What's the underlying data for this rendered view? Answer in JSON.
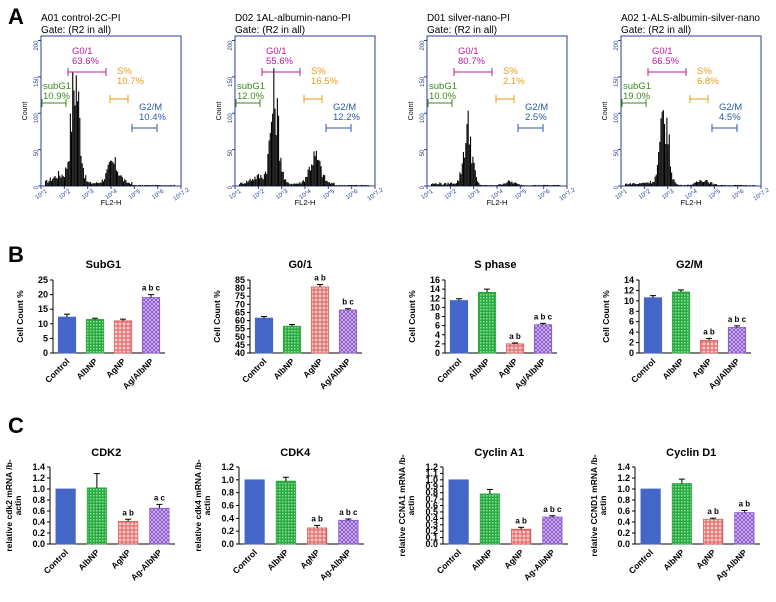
{
  "panels": {
    "a": "A",
    "b": "B",
    "c": "C"
  },
  "colors": {
    "axis": "#2b3f9a",
    "histogram": "#000000",
    "g01": "#c0189a",
    "subg1": "#3a8a1a",
    "s": "#e89b10",
    "g2m": "#2b5aa8",
    "control": "#4466c8",
    "albnp": "#2aaa40",
    "agnp": "#e05a5a",
    "agalbnp": "#8a55cc"
  },
  "flow": [
    {
      "title": "A01 control-2C-PI",
      "gate": "Gate: (R2 in all)",
      "xlabel": "FL2-H",
      "ylabel": "Count",
      "yticks": [
        "0",
        "50",
        "100",
        "150",
        "200"
      ],
      "xticks": [
        "10^1",
        "10^2",
        "10^3",
        "10^4",
        "10^5",
        "10^6",
        "10^7.2"
      ],
      "gates": {
        "g01": {
          "name": "G0/1",
          "pct": "63.6%"
        },
        "s": {
          "name": "S%",
          "pct": "10.7%"
        },
        "subg1": {
          "name": "subG1",
          "pct": "10.9%"
        },
        "g2m": {
          "name": "G2/M",
          "pct": "10.4%"
        }
      },
      "profile": {
        "g1_peak": 150,
        "g2_peak": 28,
        "g1_pos": 0.23,
        "g2_pos": 0.52,
        "floor": 12
      }
    },
    {
      "title": "D02 1AL-albumin-nano-PI",
      "gate": "Gate: (R2 in all)",
      "xlabel": "FL2-H",
      "ylabel": "Count",
      "yticks": [
        "0",
        "50",
        "100",
        "150",
        "200"
      ],
      "xticks": [
        "10^1",
        "10^2",
        "10^3",
        "10^4",
        "10^5",
        "10^6",
        "10^7.2"
      ],
      "gates": {
        "g01": {
          "name": "G0/1",
          "pct": "55.6%"
        },
        "s": {
          "name": "S%",
          "pct": "16.5%"
        },
        "subg1": {
          "name": "subG1",
          "pct": "12.0%"
        },
        "g2m": {
          "name": "G2/M",
          "pct": "12.2%"
        }
      },
      "profile": {
        "g1_peak": 120,
        "g2_peak": 38,
        "g1_pos": 0.27,
        "g2_pos": 0.58,
        "floor": 10
      }
    },
    {
      "title": "D01 silver-nano-PI",
      "gate": "Gate: (R2 in all)",
      "xlabel": "FL2-H",
      "ylabel": "Count",
      "yticks": [
        "0",
        "50",
        "100",
        "150",
        "200"
      ],
      "xticks": [
        "10^1",
        "10^2",
        "10^3",
        "10^4",
        "10^5",
        "10^6",
        "10^7.2"
      ],
      "gates": {
        "g01": {
          "name": "G0/1",
          "pct": "80.7%"
        },
        "s": {
          "name": "S%",
          "pct": "2.1%"
        },
        "subg1": {
          "name": "subG1",
          "pct": "10.0%"
        },
        "g2m": {
          "name": "G2/M",
          "pct": "2.5%"
        }
      },
      "profile": {
        "g1_peak": 80,
        "g2_peak": 5,
        "g1_pos": 0.28,
        "g2_pos": 0.6,
        "floor": 3
      }
    },
    {
      "title": "A02 1-ALS-albumin-silver-nano",
      "gate": "Gate: (R2 in all)",
      "xlabel": "FL2-H",
      "ylabel": "Count",
      "yticks": [
        "0",
        "50",
        "100",
        "150",
        "200"
      ],
      "xticks": [
        "10^1",
        "10^2",
        "10^3",
        "10^4",
        "10^5",
        "10^6",
        "10^7.2"
      ],
      "gates": {
        "g01": {
          "name": "G0/1",
          "pct": "66.5%"
        },
        "s": {
          "name": "S%",
          "pct": "6.8%"
        },
        "subg1": {
          "name": "subG1",
          "pct": "19.0%"
        },
        "g2m": {
          "name": "G2/M",
          "pct": "4.5%"
        }
      },
      "profile": {
        "g1_peak": 100,
        "g2_peak": 8,
        "g1_pos": 0.3,
        "g2_pos": 0.6,
        "floor": 4
      }
    }
  ],
  "chart_data": [
    {
      "type": "bar",
      "title": "SubG1",
      "ylabel": "Cell Count %",
      "categories": [
        "Control",
        "AlbNP",
        "AgNP",
        "Ag/AlbNP"
      ],
      "values": [
        12.3,
        11.5,
        11.0,
        19.0
      ],
      "errors": [
        1.0,
        0.4,
        0.6,
        1.0
      ],
      "sig": [
        "",
        "",
        "",
        "a b c"
      ],
      "ylim": [
        0,
        25
      ],
      "ticks": [
        "0",
        "5",
        "10",
        "15",
        "20",
        "25"
      ]
    },
    {
      "type": "bar",
      "title": "G0/1",
      "ylabel": "Cell Count %",
      "categories": [
        "Control",
        "AlbNP",
        "AgNP",
        "Ag/AlbNP"
      ],
      "values": [
        61.5,
        56.5,
        80.7,
        66.5
      ],
      "errors": [
        1.0,
        1.0,
        1.5,
        0.8
      ],
      "sig": [
        "",
        "",
        "a b",
        "b c"
      ],
      "ylim": [
        40,
        85
      ],
      "ticks": [
        "40",
        "45",
        "50",
        "55",
        "60",
        "65",
        "70",
        "75",
        "80",
        "85"
      ]
    },
    {
      "type": "bar",
      "title": "S phase",
      "ylabel": "Cell Count %",
      "categories": [
        "Control",
        "AlbNP",
        "AgNP",
        "Ag/AlbNP"
      ],
      "values": [
        11.5,
        13.3,
        2.0,
        6.2
      ],
      "errors": [
        0.4,
        0.7,
        0.2,
        0.3
      ],
      "sig": [
        "",
        "",
        "a b",
        "a b c"
      ],
      "ylim": [
        0,
        16
      ],
      "ticks": [
        "0",
        "2",
        "4",
        "6",
        "8",
        "10",
        "12",
        "14",
        "16"
      ]
    },
    {
      "type": "bar",
      "title": "G2/M",
      "ylabel": "Cell Count %",
      "categories": [
        "Control",
        "AlbNP",
        "AgNP",
        "Ag/AlbNP"
      ],
      "values": [
        10.6,
        11.7,
        2.4,
        4.9
      ],
      "errors": [
        0.4,
        0.4,
        0.4,
        0.3
      ],
      "sig": [
        "",
        "",
        "a b",
        "a b c"
      ],
      "ylim": [
        0,
        14
      ],
      "ticks": [
        "0",
        "2",
        "4",
        "6",
        "8",
        "10",
        "12",
        "14"
      ]
    },
    {
      "type": "bar",
      "title": "CDK2",
      "ylabel": "relative cdk2 mRNA /b-actin",
      "categories": [
        "Control",
        "AlbNP",
        "AgNP",
        "Ag-AlbNP"
      ],
      "values": [
        1.0,
        1.02,
        0.41,
        0.65
      ],
      "errors": [
        0.0,
        0.26,
        0.04,
        0.07
      ],
      "sig": [
        "",
        "",
        "a b",
        "a c"
      ],
      "ylim": [
        0,
        1.4
      ],
      "ticks": [
        "0.0",
        "0.2",
        "0.4",
        "0.6",
        "0.8",
        "1.0",
        "1.2",
        "1.4"
      ]
    },
    {
      "type": "bar",
      "title": "CDK4",
      "ylabel": "relative cdk4 mRNA /b-actin",
      "categories": [
        "Control",
        "AlbNP",
        "AgNP",
        "Ag-AlbNP"
      ],
      "values": [
        1.0,
        0.98,
        0.25,
        0.37
      ],
      "errors": [
        0.0,
        0.06,
        0.04,
        0.02
      ],
      "sig": [
        "",
        "",
        "a b",
        "a b c"
      ],
      "ylim": [
        0,
        1.2
      ],
      "ticks": [
        "0.0",
        "0.2",
        "0.4",
        "0.6",
        "0.8",
        "1.0",
        "1.2"
      ]
    },
    {
      "type": "bar",
      "title": "Cyclin A1",
      "ylabel": "relative CCNA1 mRNA /b-actin",
      "categories": [
        "Control",
        "AlbNP",
        "AgNP",
        "Ag-AlbNP"
      ],
      "values": [
        1.0,
        0.78,
        0.23,
        0.42
      ],
      "errors": [
        0.0,
        0.07,
        0.03,
        0.02
      ],
      "sig": [
        "",
        "",
        "a b",
        "a b c"
      ],
      "ylim": [
        0,
        1.2
      ],
      "ticks": [
        "0.0",
        "0.1",
        "0.2",
        "0.3",
        "0.4",
        "0.5",
        "0.6",
        "0.7",
        "0.8",
        "0.9",
        "1.0",
        "1.1",
        "1.2"
      ]
    },
    {
      "type": "bar",
      "title": "Cyclin D1",
      "ylabel": "relative CCND1 mRNA /b-actin",
      "categories": [
        "Control",
        "AlbNP",
        "AgNP",
        "Ag-AlbNP"
      ],
      "values": [
        1.0,
        1.1,
        0.45,
        0.57
      ],
      "errors": [
        0.0,
        0.08,
        0.02,
        0.04
      ],
      "sig": [
        "",
        "",
        "a b",
        "a b"
      ],
      "ylim": [
        0,
        1.4
      ],
      "ticks": [
        "0.0",
        "0.2",
        "0.4",
        "0.6",
        "0.8",
        "1.0",
        "1.2",
        "1.4"
      ]
    }
  ]
}
